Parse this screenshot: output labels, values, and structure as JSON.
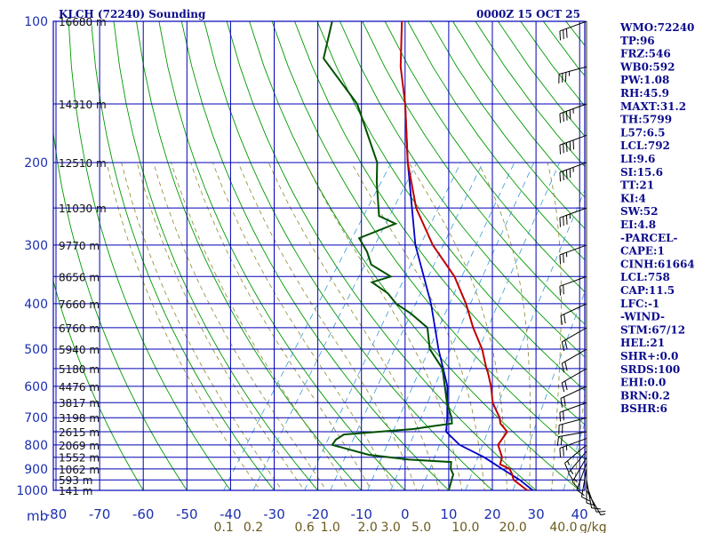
{
  "chart_data": {
    "type": "skew-t log-p sounding",
    "title_left": "KLCH (72240) Sounding",
    "title_right": "0000Z 15 OCT 25",
    "x_unit_label": "mb",
    "y_pressure_ticks": [
      100,
      200,
      300,
      400,
      500,
      600,
      700,
      800,
      900,
      1000
    ],
    "temp_ticks": [
      -80,
      -70,
      -60,
      -50,
      -40,
      -30,
      -20,
      -10,
      0,
      10,
      20,
      30,
      40
    ],
    "heights": [
      {
        "p": 100,
        "label": "16680 m"
      },
      {
        "p": 150,
        "label": "14310 m"
      },
      {
        "p": 200,
        "label": "12510 m"
      },
      {
        "p": 250,
        "label": "11030 m"
      },
      {
        "p": 300,
        "label": "9770 m"
      },
      {
        "p": 350,
        "label": "8656 m"
      },
      {
        "p": 400,
        "label": "7660 m"
      },
      {
        "p": 450,
        "label": "6760 m"
      },
      {
        "p": 500,
        "label": "5940 m"
      },
      {
        "p": 550,
        "label": "5180 m"
      },
      {
        "p": 600,
        "label": "4476 m"
      },
      {
        "p": 650,
        "label": "3817 m"
      },
      {
        "p": 700,
        "label": "3198 m"
      },
      {
        "p": 750,
        "label": "2615 m"
      },
      {
        "p": 800,
        "label": "2069 m"
      },
      {
        "p": 850,
        "label": "1552 m"
      },
      {
        "p": 900,
        "label": "1062 m"
      },
      {
        "p": 950,
        "label": "593 m"
      },
      {
        "p": 1000,
        "label": "141 m"
      }
    ],
    "mixing_ratio_labels": [
      "0.1",
      "0.2",
      "0.6",
      "1.0",
      "2.0",
      "3.0",
      "5.0",
      "10.0",
      "20.0",
      "40.0"
    ],
    "mixing_ratio_unit": "g/kg",
    "temperature": [
      [
        1008,
        29.8
      ],
      [
        1000,
        28
      ],
      [
        950,
        23.2
      ],
      [
        925,
        22
      ],
      [
        900,
        20.5
      ],
      [
        880,
        17.6
      ],
      [
        850,
        16.9
      ],
      [
        800,
        14
      ],
      [
        750,
        14
      ],
      [
        720,
        11.1
      ],
      [
        700,
        10
      ],
      [
        660,
        6.8
      ],
      [
        650,
        6
      ],
      [
        600,
        3
      ],
      [
        560,
        0
      ],
      [
        550,
        -0.9
      ],
      [
        500,
        -5
      ],
      [
        450,
        -10.5
      ],
      [
        400,
        -16
      ],
      [
        350,
        -23
      ],
      [
        300,
        -33
      ],
      [
        250,
        -42.8
      ],
      [
        200,
        -52
      ],
      [
        150,
        -62
      ],
      [
        125,
        -69
      ],
      [
        100,
        -76
      ]
    ],
    "dewpoint": [
      [
        1008,
        10.5
      ],
      [
        1000,
        10
      ],
      [
        950,
        9
      ],
      [
        925,
        8.5
      ],
      [
        900,
        7
      ],
      [
        870,
        6
      ],
      [
        860,
        -4
      ],
      [
        840,
        -14
      ],
      [
        800,
        -24
      ],
      [
        780,
        -24
      ],
      [
        760,
        -23
      ],
      [
        740,
        -8
      ],
      [
        730,
        -4
      ],
      [
        720,
        0
      ],
      [
        700,
        -1
      ],
      [
        650,
        -4.5
      ],
      [
        600,
        -7.6
      ],
      [
        550,
        -11
      ],
      [
        500,
        -17
      ],
      [
        450,
        -21
      ],
      [
        420,
        -27
      ],
      [
        400,
        -32
      ],
      [
        380,
        -35.6
      ],
      [
        360,
        -41
      ],
      [
        350,
        -37.6
      ],
      [
        330,
        -44
      ],
      [
        310,
        -47
      ],
      [
        290,
        -51
      ],
      [
        270,
        -45
      ],
      [
        260,
        -50
      ],
      [
        220,
        -56
      ],
      [
        200,
        -59
      ],
      [
        150,
        -73
      ],
      [
        120,
        -88
      ],
      [
        100,
        -92
      ]
    ],
    "parcel": [
      [
        1008,
        30
      ],
      [
        950,
        24.6
      ],
      [
        900,
        18.8
      ],
      [
        850,
        12.8
      ],
      [
        800,
        5.2
      ],
      [
        750,
        0
      ],
      [
        700,
        -2
      ],
      [
        600,
        -7
      ],
      [
        500,
        -15
      ],
      [
        400,
        -24
      ],
      [
        300,
        -37
      ],
      [
        200,
        -52
      ],
      [
        150,
        -62
      ]
    ],
    "wind_barbs": [
      [
        1000,
        150,
        5
      ],
      [
        975,
        160,
        10
      ],
      [
        950,
        170,
        10
      ],
      [
        925,
        180,
        10
      ],
      [
        900,
        190,
        10
      ],
      [
        875,
        200,
        10
      ],
      [
        850,
        210,
        15
      ],
      [
        825,
        220,
        15
      ],
      [
        800,
        230,
        15
      ],
      [
        775,
        250,
        25
      ],
      [
        750,
        260,
        20
      ],
      [
        700,
        255,
        20
      ],
      [
        650,
        250,
        20
      ],
      [
        600,
        245,
        20
      ],
      [
        550,
        240,
        20
      ],
      [
        500,
        240,
        20
      ],
      [
        450,
        240,
        20
      ],
      [
        400,
        245,
        20
      ],
      [
        350,
        250,
        20
      ],
      [
        300,
        250,
        25
      ],
      [
        250,
        250,
        35
      ],
      [
        200,
        250,
        45
      ],
      [
        175,
        250,
        50
      ],
      [
        150,
        250,
        45
      ],
      [
        125,
        255,
        35
      ],
      [
        100,
        250,
        30
      ]
    ]
  },
  "indices": [
    "WMO:72240",
    "TP:96",
    "FRZ:546",
    "WB0:592",
    "PW:1.08",
    "RH:45.9",
    "MAXT:31.2",
    "TH:5799",
    "L57:6.5",
    "LCL:792",
    "LI:9.6",
    "SI:15.6",
    "TT:21",
    "KI:4",
    "SW:52",
    "EI:4.8",
    "-PARCEL-",
    "CAPE:1",
    "CINH:61664",
    "LCL:758",
    "CAP:11.5",
    "LFC:-1",
    "-WIND-",
    "STM:67/12",
    "HEL:21",
    "SHR+:0.0",
    "SRDS:100",
    "EHI:0.0",
    "BRN:0.2",
    "BSHR:6"
  ],
  "colors": {
    "grid": "#0000b4",
    "dry_adiabat": "#009a00",
    "moist_adiabat": "#8a8a30",
    "mixing_ratio": "#3a9ad9",
    "temperature": "#c00000",
    "dewpoint": "#005000",
    "parcel": "#0000c8",
    "barb": "#000000"
  }
}
